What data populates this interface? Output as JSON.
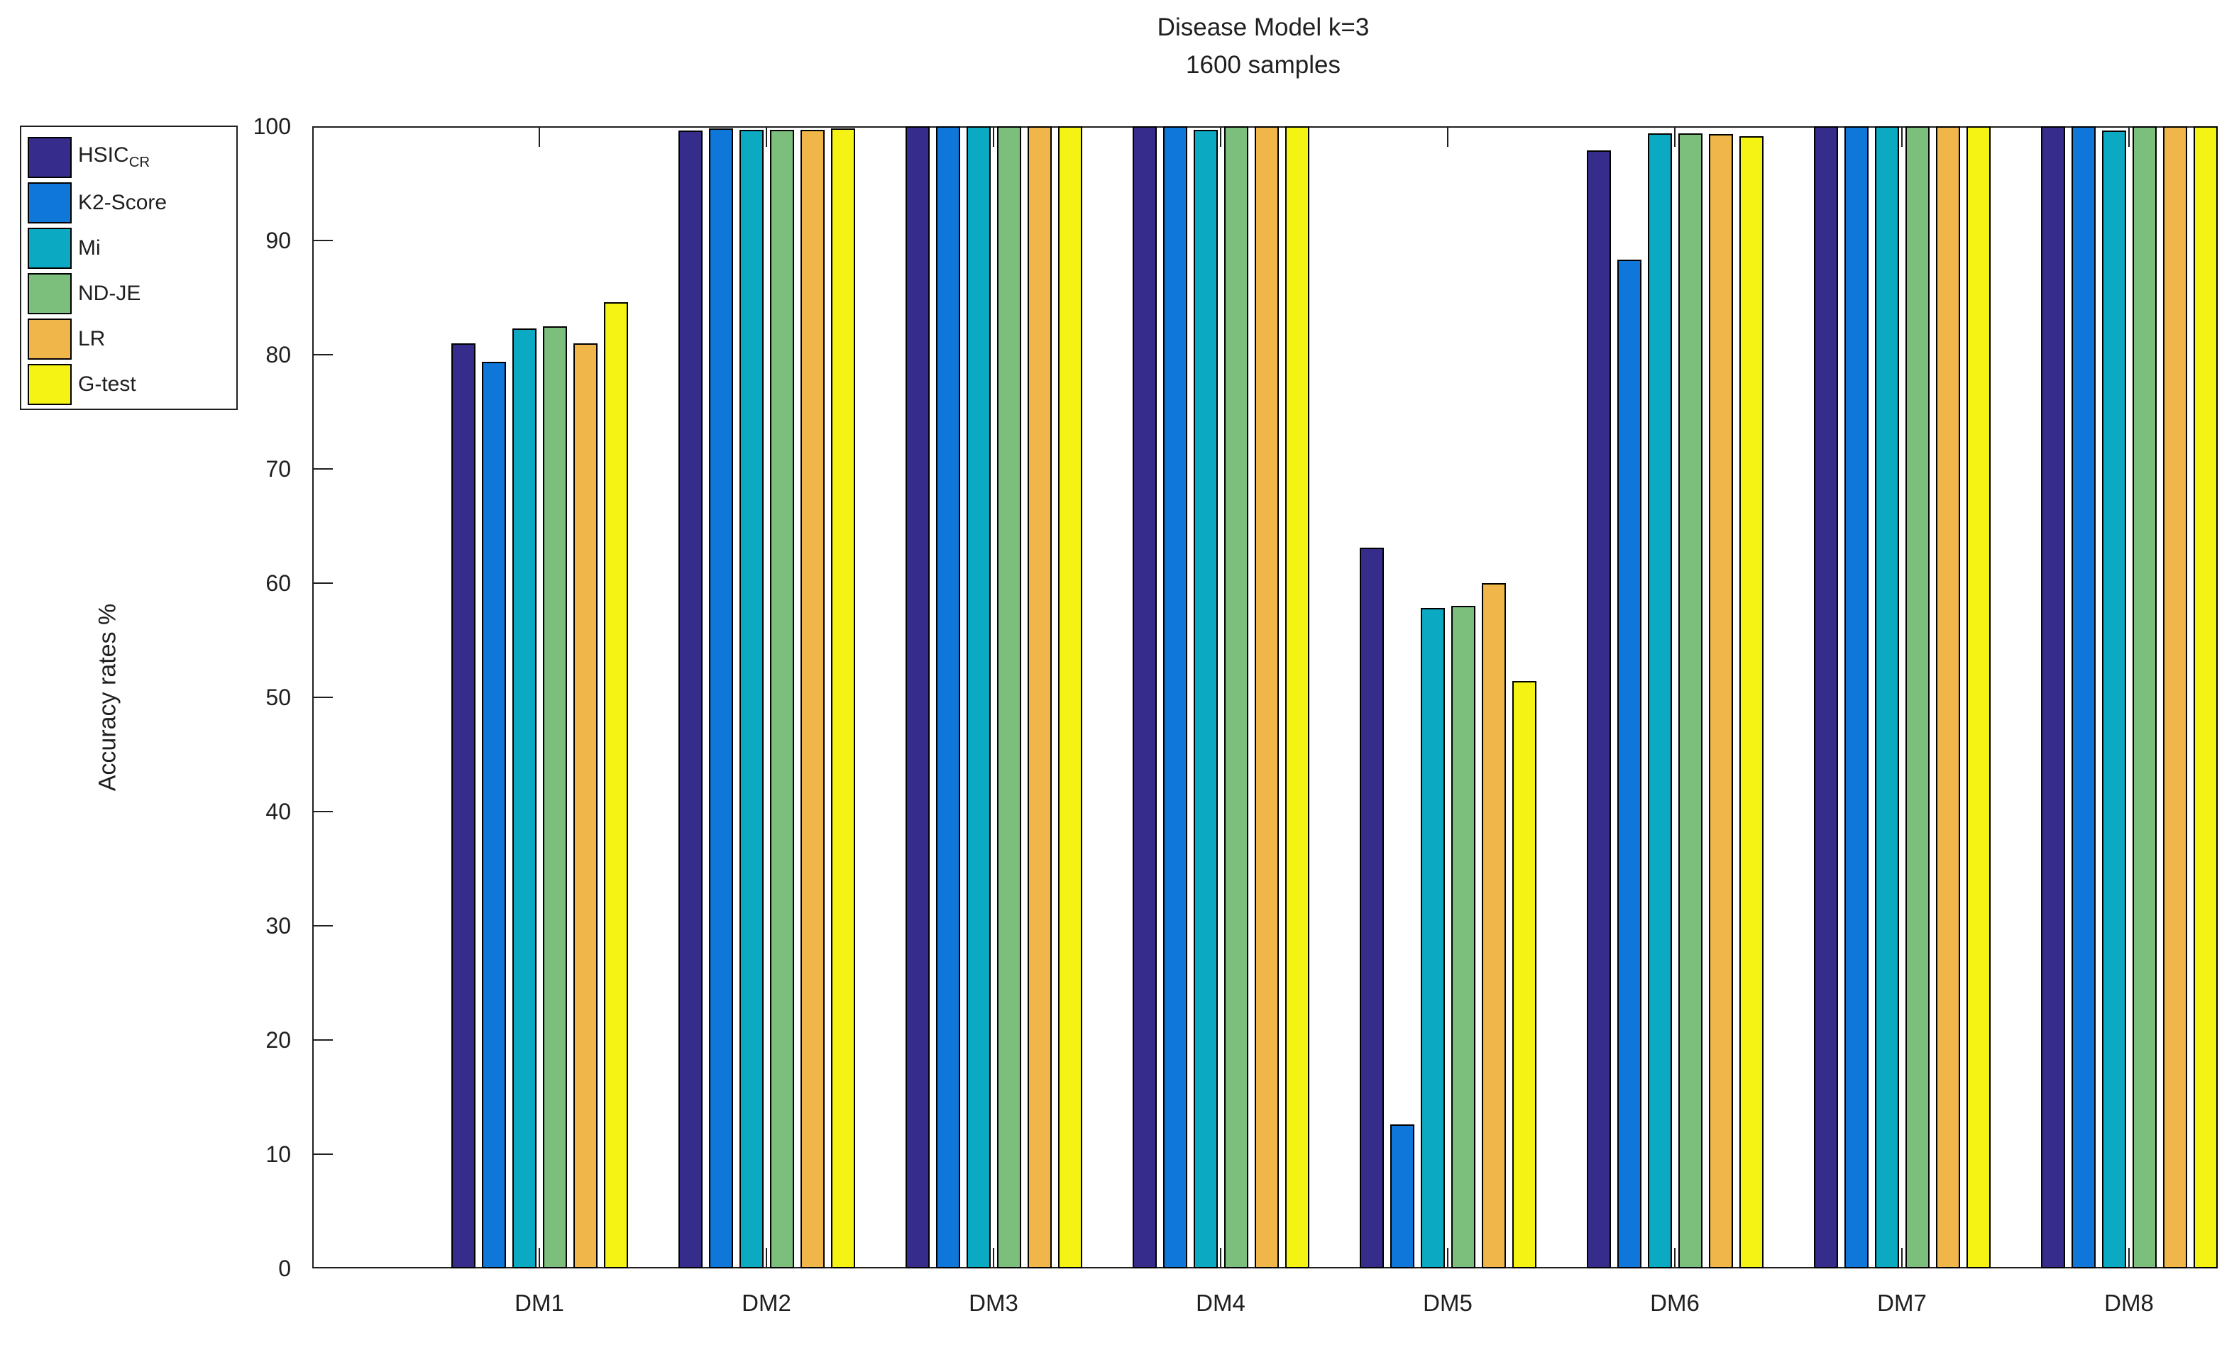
{
  "chart_data": {
    "type": "bar",
    "title": "Disease Model k=3",
    "subtitle": "1600 samples",
    "xlabel": "",
    "ylabel": "Accuracy rates %",
    "ylim": [
      0,
      100
    ],
    "yticks": [
      0,
      10,
      20,
      30,
      40,
      50,
      60,
      70,
      80,
      90,
      100
    ],
    "grid": false,
    "legend_position": "outside-top-left",
    "categories": [
      "DM1",
      "DM2",
      "DM3",
      "DM4",
      "DM5",
      "DM6",
      "DM7",
      "DM8"
    ],
    "series": [
      {
        "name": "HSIC_CR",
        "legend_main": "HSIC",
        "legend_sub": "CR",
        "color": "#352c8b",
        "values": [
          81.0,
          99.6,
          100,
          100,
          63.1,
          97.9,
          100,
          100
        ]
      },
      {
        "name": "K2-Score",
        "color": "#0e77d9",
        "values": [
          79.4,
          99.8,
          100,
          100,
          12.6,
          88.3,
          100,
          100
        ]
      },
      {
        "name": "Mi",
        "color": "#0ba9c2",
        "values": [
          82.3,
          99.7,
          100,
          99.7,
          57.8,
          99.4,
          100,
          99.6
        ]
      },
      {
        "name": "ND-JE",
        "color": "#7cbf7d",
        "values": [
          82.5,
          99.7,
          100,
          100,
          58.0,
          99.4,
          100,
          100
        ]
      },
      {
        "name": "LR",
        "color": "#f0b649",
        "values": [
          81.0,
          99.7,
          100,
          100,
          60.0,
          99.3,
          100,
          100
        ]
      },
      {
        "name": "G-test",
        "color": "#f5f314",
        "values": [
          84.6,
          99.8,
          100,
          100,
          51.4,
          99.1,
          100,
          100
        ]
      }
    ]
  }
}
